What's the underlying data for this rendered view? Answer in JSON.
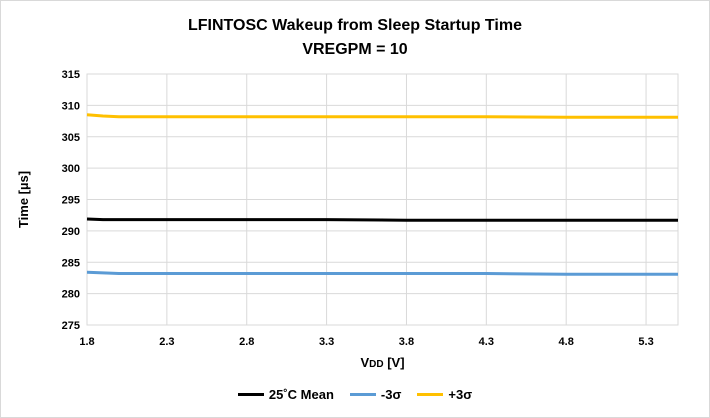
{
  "chart_data": {
    "type": "line",
    "title": "LFINTOSC Wakeup from Sleep Startup Time",
    "subtitle": "VREGPM = 10",
    "xlabel": "VDD [V]",
    "xlabel_main": "V",
    "xlabel_sub": "DD",
    "xlabel_unit": " [V]",
    "ylabel": "Time [µs]",
    "xlim": [
      1.8,
      5.5
    ],
    "ylim": [
      275,
      315
    ],
    "xticks": [
      "1.8",
      "2.3",
      "2.8",
      "3.3",
      "3.8",
      "4.3",
      "4.8",
      "5.3"
    ],
    "yticks": [
      "275",
      "280",
      "285",
      "290",
      "295",
      "300",
      "305",
      "310",
      "315"
    ],
    "grid": true,
    "legend_position": "bottom",
    "series": [
      {
        "name": "25˚C Mean",
        "color": "#000000",
        "x": [
          1.8,
          1.9,
          2.0,
          2.3,
          2.8,
          3.3,
          3.8,
          4.3,
          4.8,
          5.3,
          5.5
        ],
        "y": [
          291.9,
          291.8,
          291.8,
          291.8,
          291.8,
          291.8,
          291.7,
          291.7,
          291.7,
          291.7,
          291.7
        ]
      },
      {
        "name": "-3σ",
        "color": "#5b9bd5",
        "x": [
          1.8,
          1.9,
          2.0,
          2.3,
          2.8,
          3.3,
          3.8,
          4.3,
          4.8,
          5.3,
          5.5
        ],
        "y": [
          283.4,
          283.3,
          283.2,
          283.2,
          283.2,
          283.2,
          283.2,
          283.2,
          283.1,
          283.1,
          283.1
        ]
      },
      {
        "name": "+3σ",
        "color": "#ffc000",
        "x": [
          1.8,
          1.9,
          2.0,
          2.3,
          2.8,
          3.3,
          3.8,
          4.3,
          4.8,
          5.3,
          5.5
        ],
        "y": [
          308.5,
          308.3,
          308.2,
          308.2,
          308.2,
          308.2,
          308.2,
          308.2,
          308.1,
          308.1,
          308.1
        ]
      }
    ]
  }
}
